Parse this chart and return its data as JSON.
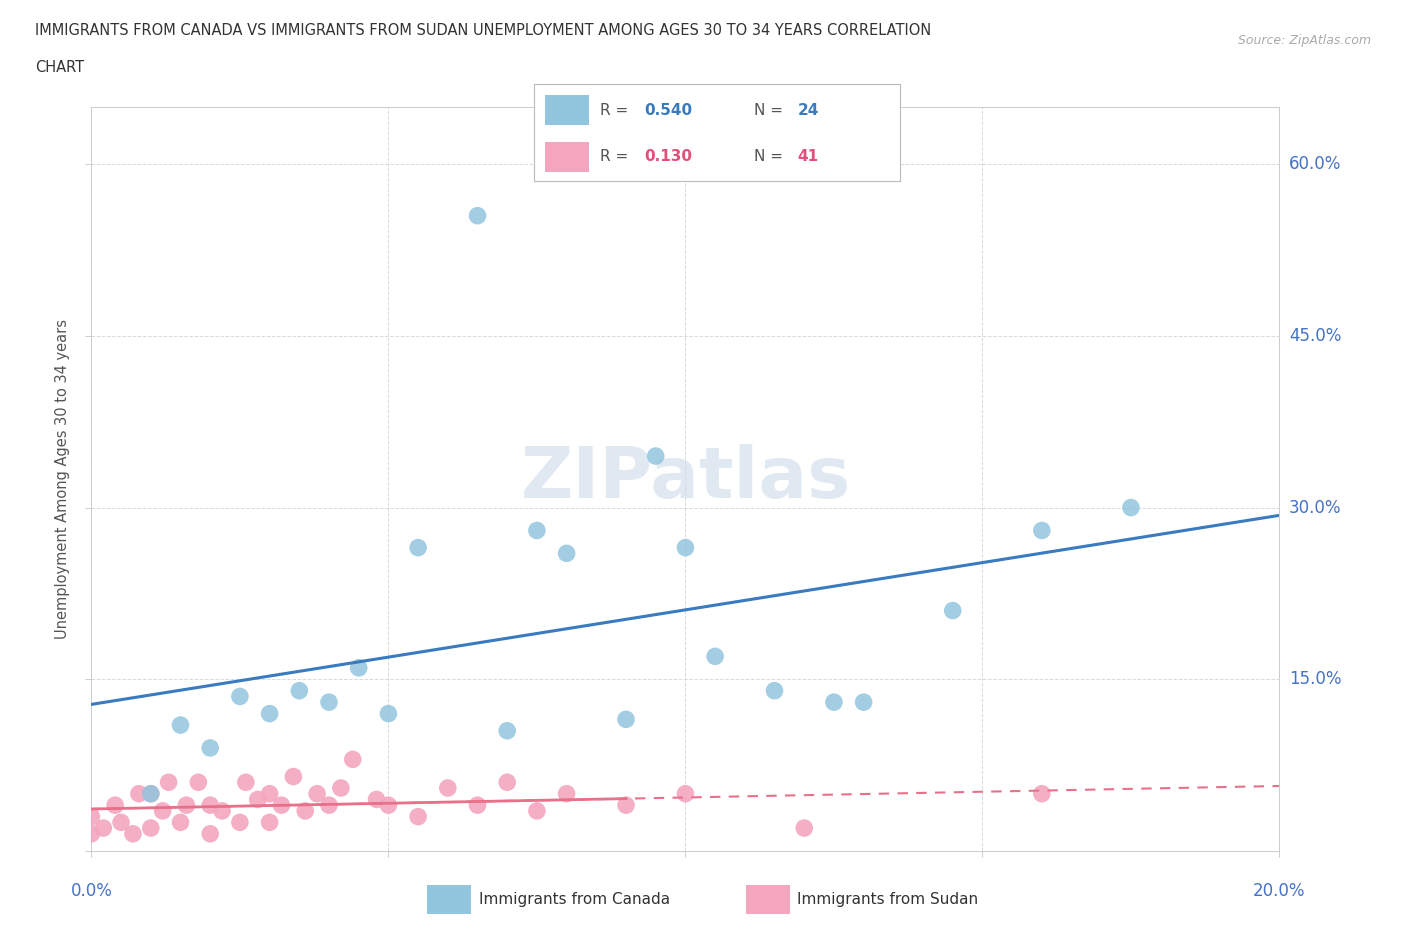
{
  "title_line1": "IMMIGRANTS FROM CANADA VS IMMIGRANTS FROM SUDAN UNEMPLOYMENT AMONG AGES 30 TO 34 YEARS CORRELATION",
  "title_line2": "CHART",
  "source_text": "Source: ZipAtlas.com",
  "ylabel": "Unemployment Among Ages 30 to 34 years",
  "canada_R": 0.54,
  "canada_N": 24,
  "sudan_R": 0.13,
  "sudan_N": 41,
  "canada_color": "#92c5de",
  "sudan_color": "#f4a6be",
  "canada_line_color": "#3a7abf",
  "sudan_line_color": "#e8708a",
  "canada_scatter_x": [
    0.01,
    0.015,
    0.02,
    0.025,
    0.03,
    0.035,
    0.04,
    0.045,
    0.05,
    0.055,
    0.065,
    0.07,
    0.075,
    0.08,
    0.09,
    0.095,
    0.1,
    0.105,
    0.115,
    0.125,
    0.13,
    0.145,
    0.16,
    0.175
  ],
  "canada_scatter_y": [
    0.05,
    0.11,
    0.09,
    0.135,
    0.12,
    0.14,
    0.13,
    0.16,
    0.12,
    0.265,
    0.555,
    0.105,
    0.28,
    0.26,
    0.115,
    0.345,
    0.265,
    0.17,
    0.14,
    0.13,
    0.13,
    0.21,
    0.28,
    0.3
  ],
  "sudan_scatter_x": [
    0.0,
    0.0,
    0.002,
    0.004,
    0.005,
    0.007,
    0.008,
    0.01,
    0.01,
    0.012,
    0.013,
    0.015,
    0.016,
    0.018,
    0.02,
    0.02,
    0.022,
    0.025,
    0.026,
    0.028,
    0.03,
    0.03,
    0.032,
    0.034,
    0.036,
    0.038,
    0.04,
    0.042,
    0.044,
    0.048,
    0.05,
    0.055,
    0.06,
    0.065,
    0.07,
    0.075,
    0.08,
    0.09,
    0.1,
    0.12,
    0.16
  ],
  "sudan_scatter_y": [
    0.015,
    0.03,
    0.02,
    0.04,
    0.025,
    0.015,
    0.05,
    0.02,
    0.05,
    0.035,
    0.06,
    0.025,
    0.04,
    0.06,
    0.015,
    0.04,
    0.035,
    0.025,
    0.06,
    0.045,
    0.025,
    0.05,
    0.04,
    0.065,
    0.035,
    0.05,
    0.04,
    0.055,
    0.08,
    0.045,
    0.04,
    0.03,
    0.055,
    0.04,
    0.06,
    0.035,
    0.05,
    0.04,
    0.05,
    0.02,
    0.05
  ],
  "watermark_text": "ZIPatlas",
  "background_color": "#ffffff",
  "grid_color": "#d0d0d0"
}
